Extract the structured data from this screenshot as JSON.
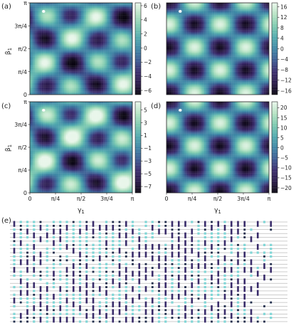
{
  "panel_labels": [
    "(a)",
    "(b)",
    "(c)",
    "(d)",
    "(e)"
  ],
  "axes": {
    "xlabel": "γ1",
    "ylabel": "β1",
    "tick_labels": [
      "0",
      "π/4",
      "π/2",
      "3π/4",
      "π"
    ]
  },
  "colormap": [
    "#0a0612",
    "#2a1a4a",
    "#3b2d6e",
    "#3c5c93",
    "#3f87a6",
    "#52aaae",
    "#7fcbb0",
    "#b6e3c4",
    "#e8f6ea"
  ],
  "chart_data": [
    {
      "panel": "(a)",
      "type": "heatmap",
      "amplitude": 6.2,
      "scale": "symmetric",
      "colorbar_ticks": [
        "6",
        "4",
        "2",
        "0",
        "−2",
        "−4",
        "−6"
      ],
      "colorbar_values": [
        6,
        4,
        2,
        0,
        -2,
        -4,
        -6
      ],
      "vlim": [
        -6.6,
        6.4
      ],
      "marker": {
        "gamma": 0.42,
        "beta": 2.85
      }
    },
    {
      "panel": "(b)",
      "type": "heatmap",
      "amplitude": 16.5,
      "scale": "asymmetric",
      "colorbar_ticks": [
        "16",
        "12",
        "8",
        "4",
        "0",
        "−4",
        "−8",
        "−12",
        "−16"
      ],
      "colorbar_values": [
        16,
        12,
        8,
        4,
        0,
        -4,
        -8,
        -12,
        -16
      ],
      "vlim": [
        -17.5,
        17.5
      ],
      "marker": {
        "gamma": 0.42,
        "beta": 2.85
      }
    },
    {
      "panel": "(c)",
      "type": "heatmap",
      "amplitude": 7.2,
      "scale": "symmetric",
      "colorbar_ticks": [
        "5",
        "3",
        "1",
        "−1",
        "−3",
        "−5",
        "−7"
      ],
      "colorbar_values": [
        5,
        3,
        1,
        -1,
        -3,
        -5,
        -7
      ],
      "vlim": [
        -8,
        6.3
      ],
      "marker": {
        "gamma": 0.42,
        "beta": 2.85
      }
    },
    {
      "panel": "(d)",
      "type": "heatmap",
      "amplitude": 21.5,
      "scale": "asymmetric",
      "colorbar_ticks": [
        "20",
        "15",
        "10",
        "5",
        "0",
        "−5",
        "−10",
        "−15",
        "−20"
      ],
      "colorbar_values": [
        20,
        15,
        10,
        5,
        0,
        -5,
        -10,
        -15,
        -20
      ],
      "vlim": [
        -22.5,
        23
      ],
      "marker": {
        "gamma": 0.42,
        "beta": 2.85
      }
    }
  ],
  "circuit": {
    "panel": "(e)",
    "qubits": 27,
    "layers": 40,
    "colors": {
      "gate_light": "#7fd6d6",
      "gate_dark": "#3a2d6b",
      "gate_navy": "#1e2b4a",
      "wire": "#9a9a9a"
    }
  }
}
